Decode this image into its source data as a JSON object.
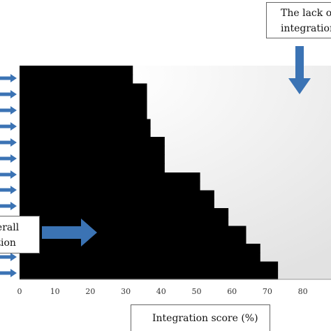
{
  "chart_data": {
    "type": "bar",
    "orientation": "horizontal",
    "xlabel": "Integration score (%)",
    "xlim": [
      0,
      90
    ],
    "x_ticks": [
      0,
      10,
      20,
      30,
      40,
      50,
      60,
      70,
      80
    ],
    "series": [
      {
        "values": [
          32,
          32,
          36,
          36,
          36,
          36,
          37,
          37,
          41,
          41,
          41,
          41,
          51,
          51,
          55,
          55,
          59,
          59,
          64,
          64,
          68,
          68,
          73,
          73
        ]
      }
    ],
    "bar_color": "#000000",
    "background_gradient": [
      "#ffffff",
      "#e2e2e2"
    ],
    "arrow_color": "#3b73b4",
    "annotations": [
      {
        "id": "lack",
        "lines": [
          "The lack o",
          "integration"
        ]
      },
      {
        "id": "overall",
        "lines": [
          "verall",
          "ation"
        ]
      }
    ]
  }
}
